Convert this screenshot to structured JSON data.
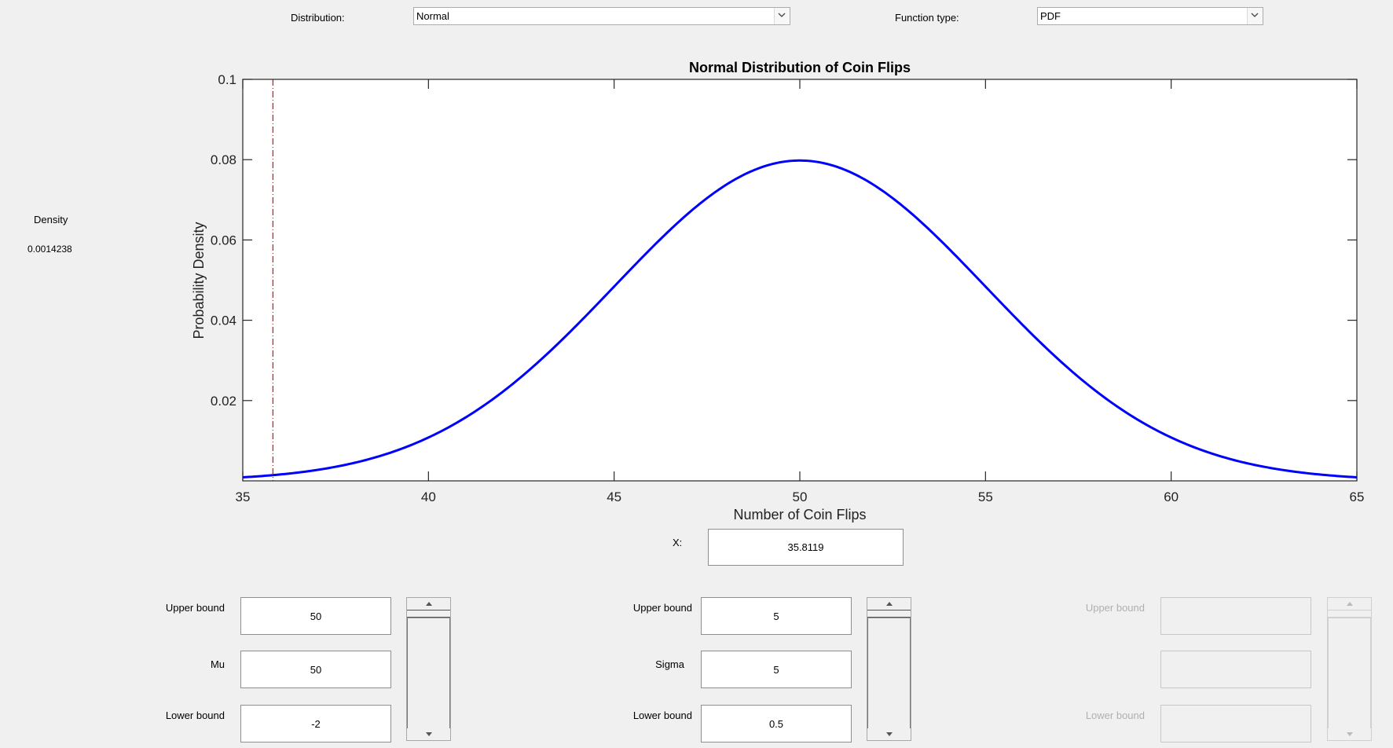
{
  "controls": {
    "distribution_label": "Distribution:",
    "distribution_value": "Normal",
    "function_type_label": "Function type:",
    "function_type_value": "PDF"
  },
  "readout": {
    "density_label": "Density",
    "density_value": "0.0014238",
    "x_label": "X:",
    "x_value": "35.8119"
  },
  "params": [
    {
      "upper_label": "Upper bound",
      "upper_value": "50",
      "name": "Mu",
      "value": "50",
      "lower_label": "Lower bound",
      "lower_value": "-2",
      "enabled": true
    },
    {
      "upper_label": "Upper bound",
      "upper_value": "5",
      "name": "Sigma",
      "value": "5",
      "lower_label": "Lower bound",
      "lower_value": "0.5",
      "enabled": true
    },
    {
      "upper_label": "Upper bound",
      "upper_value": "",
      "name": "",
      "value": "",
      "lower_label": "Lower bound",
      "lower_value": "",
      "enabled": false
    }
  ],
  "colors": {
    "curve": "#0000ff",
    "marker": "#ff0000",
    "axes": "#262626"
  },
  "chart_data": {
    "type": "line",
    "title": "Normal Distribution of Coin Flips",
    "xlabel": "Number of Coin Flips",
    "ylabel": "Probability Density",
    "xlim": [
      35,
      65
    ],
    "ylim": [
      0,
      0.1
    ],
    "xticks": [
      "35",
      "40",
      "45",
      "50",
      "55",
      "60",
      "65"
    ],
    "yticks": [
      "0.02",
      "0.04",
      "0.06",
      "0.08",
      "0.1"
    ],
    "grid": false,
    "series": [
      {
        "mu": 50,
        "sigma": 5,
        "function": "normal pdf"
      }
    ],
    "marker_x": 35.8119
  }
}
